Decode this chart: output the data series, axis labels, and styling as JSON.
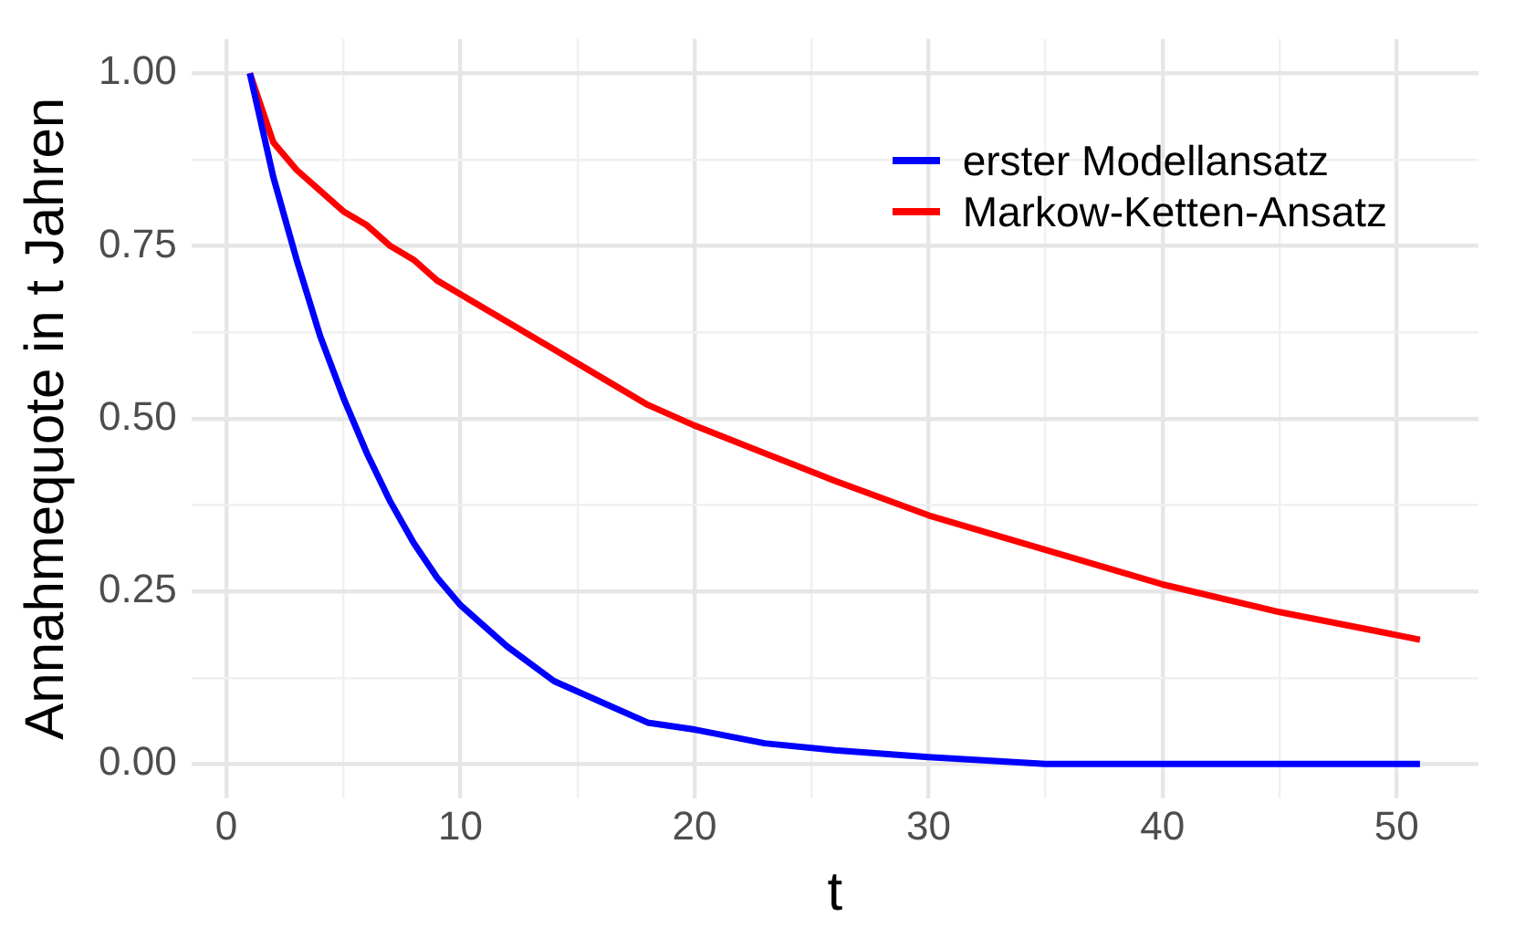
{
  "chart_data": {
    "type": "line",
    "xlabel": "t",
    "ylabel": "Annahmequote in t Jahren",
    "x": [
      1,
      2,
      3,
      4,
      5,
      6,
      7,
      8,
      9,
      10,
      12,
      14,
      16,
      18,
      20,
      23,
      26,
      30,
      35,
      40,
      45,
      51
    ],
    "series": [
      {
        "name": "erster Modellansatz",
        "color": "#0000ff",
        "values": [
          1,
          0.85,
          0.73,
          0.62,
          0.53,
          0.45,
          0.38,
          0.32,
          0.27,
          0.23,
          0.17,
          0.12,
          0.09,
          0.06,
          0.05,
          0.03,
          0.02,
          0.01,
          0.0,
          0.0,
          0.0,
          0.0
        ]
      },
      {
        "name": "Markow-Ketten-Ansatz",
        "color": "#ff0000",
        "values": [
          1,
          0.9,
          0.86,
          0.83,
          0.8,
          0.78,
          0.75,
          0.73,
          0.7,
          0.68,
          0.64,
          0.6,
          0.56,
          0.52,
          0.49,
          0.45,
          0.41,
          0.36,
          0.31,
          0.26,
          0.22,
          0.18
        ]
      }
    ],
    "xlim": [
      -1.5,
      53.5
    ],
    "xticks": [
      0,
      {
        "value": 5,
        "label": null
      },
      10,
      {
        "value": 15,
        "label": null
      },
      20,
      {
        "value": 25,
        "label": null
      },
      30,
      {
        "value": 35,
        "label": null
      },
      40,
      {
        "value": 45,
        "label": null
      },
      50
    ],
    "ylim": [
      -0.05,
      1.05
    ],
    "yticks": [
      {
        "value": 0,
        "label": "0.00"
      },
      {
        "value": 0.125,
        "label": null
      },
      {
        "value": 0.25,
        "label": "0.25"
      },
      {
        "value": 0.375,
        "label": null
      },
      {
        "value": 0.5,
        "label": "0.50"
      },
      {
        "value": 0.625,
        "label": null
      },
      {
        "value": 0.75,
        "label": "0.75"
      },
      {
        "value": 0.875,
        "label": null
      },
      {
        "value": 1,
        "label": "1.00"
      }
    ],
    "grid": true,
    "legend": "top right",
    "marker": "none",
    "line_style": "solid"
  }
}
